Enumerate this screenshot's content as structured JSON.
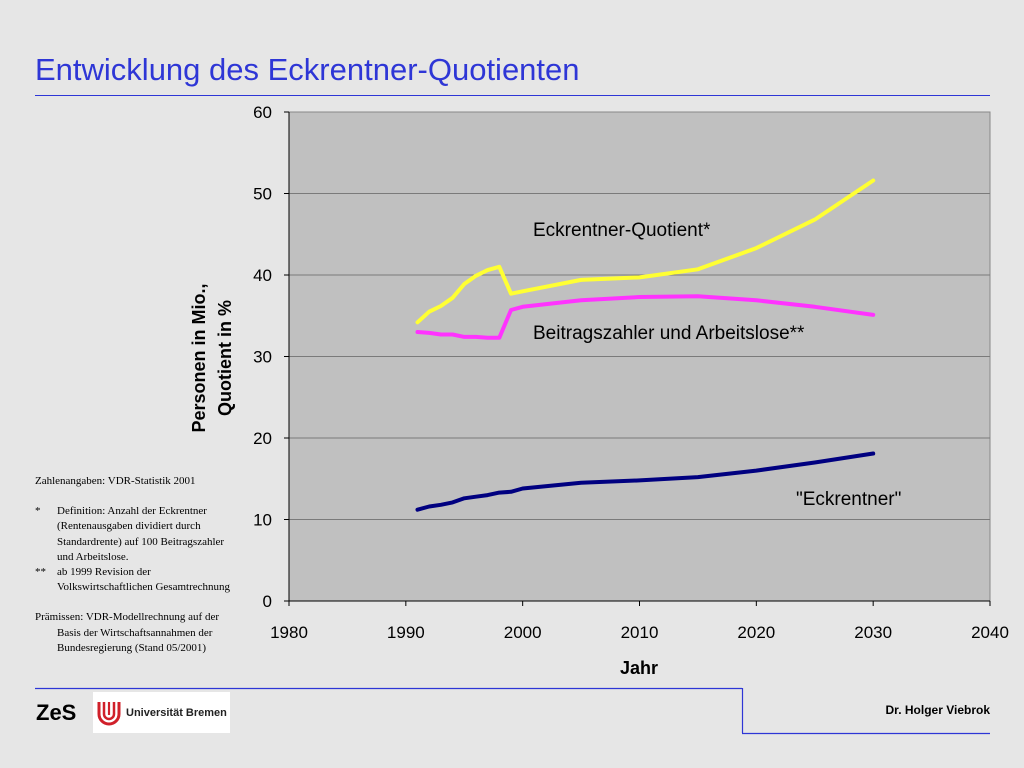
{
  "slide": {
    "title": "Entwicklung des Eckrentner-Quotienten",
    "accent_color": "#2e36d6"
  },
  "notes": {
    "source": "Zahlenangaben: VDR-Statistik 2001",
    "footnote1_mark": "*",
    "footnote1_text": "Definition: Anzahl der Eckrentner (Rentenausgaben dividiert durch Standardrente) auf 100 Beitragszahler und Arbeitslose.",
    "footnote2_mark": "**",
    "footnote2_text": "ab 1999 Revision der Volkswirtschaftlichen Gesamtrechnung",
    "premises": "Prämissen: VDR-Modellrechnung auf der Basis der Wirtschaftsannahmen der Bundesregierung (Stand 05/2001)"
  },
  "footer": {
    "zes": "ZeS",
    "university": "Universität Bremen",
    "author": "Dr. Holger Viebrok"
  },
  "chart_data": {
    "type": "line",
    "title": "",
    "xlabel": "Jahr",
    "ylabel_lines": [
      "Personen in Mio.,",
      "Quotient in %"
    ],
    "xlim": [
      1980,
      2040
    ],
    "ylim": [
      0,
      60
    ],
    "xticks": [
      1980,
      1990,
      2000,
      2010,
      2020,
      2030,
      2040
    ],
    "yticks": [
      0,
      10,
      20,
      30,
      40,
      50,
      60
    ],
    "grid": "horizontal",
    "plot_background": "#c0c0c0",
    "series": [
      {
        "name": "Eckrentner-Quotient*",
        "color": "#ffff33",
        "x": [
          1991,
          1992,
          1993,
          1994,
          1995,
          1996,
          1997,
          1998,
          1999,
          2000,
          2005,
          2010,
          2015,
          2020,
          2025,
          2030
        ],
        "y": [
          34.2,
          35.5,
          36.2,
          37.2,
          38.9,
          39.9,
          40.6,
          41.0,
          37.7,
          38.0,
          39.4,
          39.7,
          40.7,
          43.3,
          46.8,
          51.6
        ]
      },
      {
        "name": "Beitragszahler und Arbeitslose**",
        "color": "#ff33ff",
        "x": [
          1991,
          1992,
          1993,
          1994,
          1995,
          1996,
          1997,
          1998,
          1999,
          2000,
          2005,
          2010,
          2015,
          2020,
          2025,
          2030
        ],
        "y": [
          33.0,
          32.9,
          32.7,
          32.7,
          32.4,
          32.4,
          32.3,
          32.3,
          35.7,
          36.1,
          36.9,
          37.3,
          37.4,
          36.9,
          36.1,
          35.1
        ]
      },
      {
        "name": "\"Eckrentner\"",
        "color": "#000080",
        "x": [
          1991,
          1992,
          1993,
          1994,
          1995,
          1996,
          1997,
          1998,
          1999,
          2000,
          2005,
          2010,
          2015,
          2020,
          2025,
          2030
        ],
        "y": [
          11.2,
          11.6,
          11.8,
          12.1,
          12.6,
          12.8,
          13.0,
          13.3,
          13.4,
          13.8,
          14.5,
          14.8,
          15.2,
          16.0,
          17.0,
          18.1
        ]
      }
    ]
  }
}
